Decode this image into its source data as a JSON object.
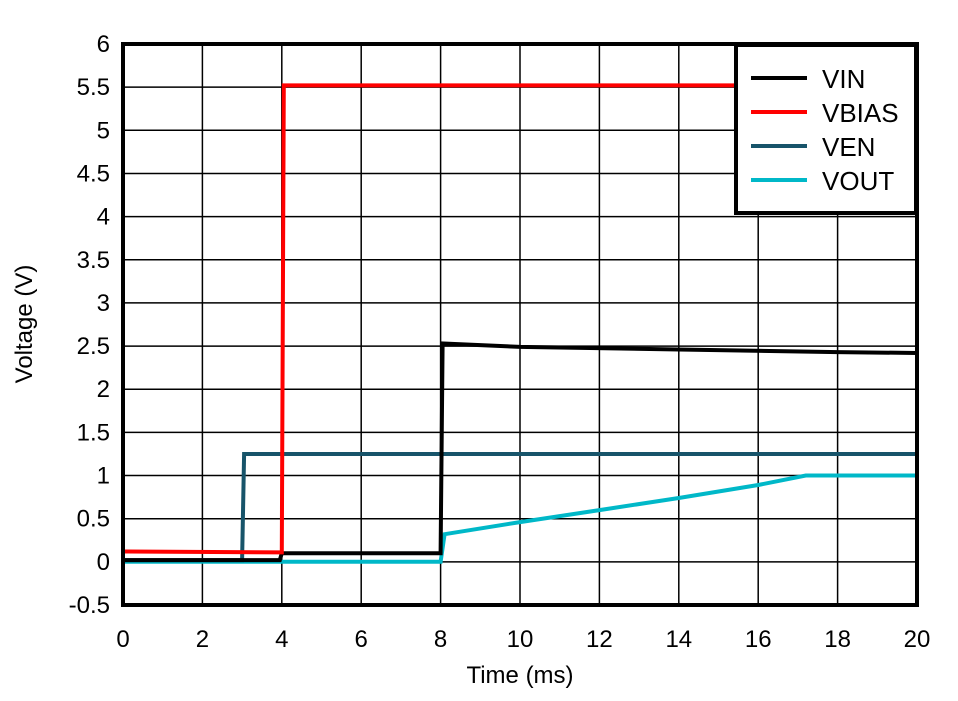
{
  "chart_data": {
    "type": "line",
    "title": "",
    "xlabel": "Time (ms)",
    "ylabel": "Voltage (V)",
    "xlim": [
      0,
      20
    ],
    "ylim": [
      -0.5,
      6
    ],
    "xticks": [
      0,
      2,
      4,
      6,
      8,
      10,
      12,
      14,
      16,
      18,
      20
    ],
    "yticks": [
      -0.5,
      0,
      0.5,
      1,
      1.5,
      2,
      2.5,
      3,
      3.5,
      4,
      4.5,
      5,
      5.5,
      6
    ],
    "xtick_labels": [
      "0",
      "2",
      "4",
      "6",
      "8",
      "10",
      "12",
      "14",
      "16",
      "18",
      "20"
    ],
    "ytick_labels": [
      "-0.5",
      "0",
      "0.5",
      "1",
      "1.5",
      "2",
      "2.5",
      "3",
      "3.5",
      "4",
      "4.5",
      "5",
      "5.5",
      "6"
    ],
    "grid": true,
    "legend_position": "upper right",
    "series": [
      {
        "name": "VIN",
        "color": "#000000",
        "x": [
          0,
          3.95,
          4.0,
          7.95,
          8.0,
          8.05,
          10,
          14,
          18,
          20
        ],
        "y": [
          0.02,
          0.02,
          0.1,
          0.1,
          0.1,
          2.53,
          2.49,
          2.46,
          2.43,
          2.42
        ]
      },
      {
        "name": "VBIAS",
        "color": "#ff0000",
        "x": [
          0,
          3.9,
          4.0,
          4.05,
          8,
          12,
          16,
          20
        ],
        "y": [
          0.12,
          0.11,
          0.11,
          5.52,
          5.52,
          5.52,
          5.52,
          5.52
        ]
      },
      {
        "name": "VEN",
        "color": "#17546a",
        "x": [
          0,
          3.0,
          3.05,
          8,
          12,
          16,
          20
        ],
        "y": [
          0.02,
          0.02,
          1.25,
          1.25,
          1.25,
          1.25,
          1.25
        ]
      },
      {
        "name": "VOUT",
        "color": "#00b8c8",
        "x": [
          0,
          7.95,
          8.0,
          8.1,
          10,
          12,
          14,
          16,
          17.2,
          18,
          20
        ],
        "y": [
          0.0,
          0.0,
          0.0,
          0.32,
          0.46,
          0.6,
          0.74,
          0.89,
          1.0,
          1.0,
          1.0
        ]
      }
    ]
  }
}
